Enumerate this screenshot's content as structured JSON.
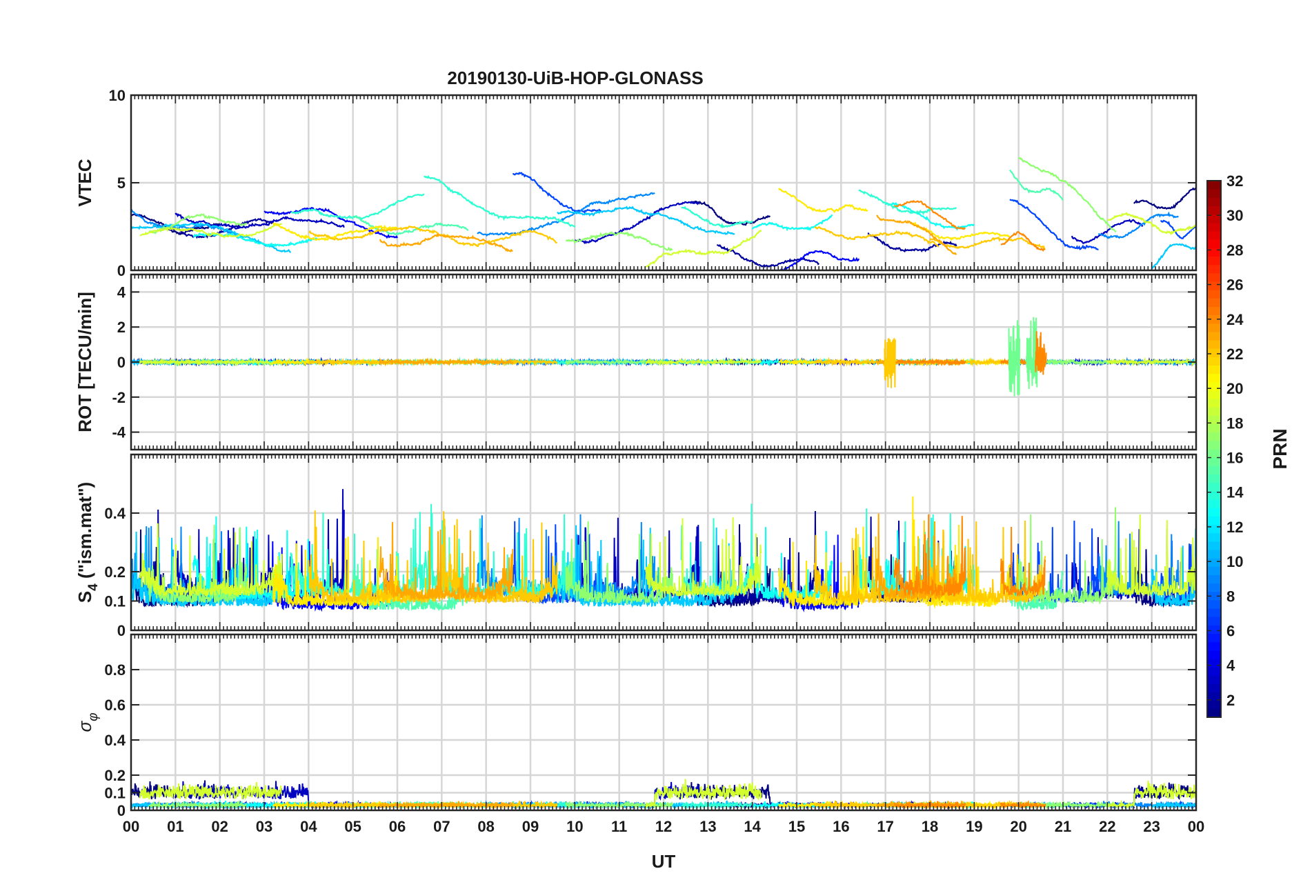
{
  "chart_data": {
    "type": "line",
    "title": "20190130-UiB-HOP-GLONASS",
    "xlabel": "UT",
    "x_range_hours": [
      0,
      24
    ],
    "x_tick_labels": [
      "00",
      "01",
      "02",
      "03",
      "04",
      "05",
      "06",
      "07",
      "08",
      "09",
      "10",
      "11",
      "12",
      "13",
      "14",
      "15",
      "16",
      "17",
      "18",
      "19",
      "20",
      "21",
      "22",
      "23",
      "00"
    ],
    "grid": true,
    "colorbar": {
      "label": "PRN",
      "range": [
        1,
        32
      ],
      "tick_labels": [
        "2",
        "4",
        "6",
        "8",
        "10",
        "12",
        "14",
        "16",
        "18",
        "20",
        "22",
        "24",
        "26",
        "28",
        "30",
        "32"
      ],
      "colormap": "jet",
      "placement": "right"
    },
    "panels": [
      {
        "id": "vtec",
        "ylabel": "VTEC",
        "ylim": [
          0,
          10
        ],
        "y_ticks": [
          0,
          5,
          10
        ],
        "y_tick_labels": [
          "0",
          "5",
          "10"
        ],
        "series": [
          {
            "prn": 1,
            "segments": [
              [
                0.0,
                2.0,
                2.8,
                2.3
              ],
              [
                12.6,
                14.4,
                3.6,
                2.8
              ],
              [
                22.6,
                24.0,
                3.5,
                4.2
              ]
            ]
          },
          {
            "prn": 2,
            "segments": [
              [
                0.5,
                3.2,
                2.2,
                2.5
              ],
              [
                13.2,
                15.5,
                1.2,
                0.2
              ],
              [
                16.6,
                18.6,
                1.8,
                1.0
              ]
            ]
          },
          {
            "prn": 3,
            "segments": [
              [
                1.0,
                4.8,
                3.2,
                2.4
              ],
              [
                10.0,
                12.8,
                1.6,
                3.8
              ],
              [
                21.2,
                22.8,
                1.9,
                2.6
              ]
            ]
          },
          {
            "prn": 5,
            "segments": [
              [
                3.0,
                6.0,
                3.7,
                2.2
              ],
              [
                14.6,
                16.4,
                0.3,
                1.0
              ]
            ]
          },
          {
            "prn": 7,
            "segments": [
              [
                8.6,
                10.6,
                5.3,
                3.0
              ],
              [
                19.8,
                21.8,
                3.8,
                0.8
              ],
              [
                23.2,
                24.0,
                2.6,
                2.2
              ]
            ]
          },
          {
            "prn": 9,
            "segments": [
              [
                0.0,
                2.4,
                3.3,
                1.8
              ],
              [
                7.8,
                11.8,
                2.0,
                4.4
              ],
              [
                21.8,
                23.6,
                2.0,
                3.0
              ]
            ]
          },
          {
            "prn": 11,
            "segments": [
              [
                0.0,
                3.6,
                2.8,
                1.5
              ],
              [
                9.6,
                13.6,
                3.6,
                2.4
              ],
              [
                23.0,
                24.0,
                0.5,
                1.8
              ]
            ]
          },
          {
            "prn": 13,
            "segments": [
              [
                1.4,
                4.2,
                1.8,
                1.6
              ],
              [
                14.0,
                15.8,
                2.2,
                3.0
              ],
              [
                17.0,
                19.0,
                3.6,
                2.4
              ]
            ]
          },
          {
            "prn": 14,
            "segments": [
              [
                3.6,
                6.6,
                3.0,
                4.0
              ],
              [
                6.6,
                10.0,
                5.0,
                2.2
              ],
              [
                12.4,
                14.0,
                3.2,
                2.5
              ],
              [
                16.4,
                18.6,
                4.2,
                3.2
              ]
            ]
          },
          {
            "prn": 15,
            "segments": [
              [
                5.0,
                7.6,
                2.8,
                2.2
              ],
              [
                19.8,
                21.0,
                5.5,
                4.0
              ]
            ]
          },
          {
            "prn": 17,
            "segments": [
              [
                0.4,
                2.6,
                2.6,
                3.0
              ],
              [
                9.8,
                12.2,
                2.0,
                1.6
              ],
              [
                20.0,
                22.2,
                6.8,
                2.6
              ]
            ]
          },
          {
            "prn": 19,
            "segments": [
              [
                0.2,
                3.4,
                1.9,
                2.6
              ],
              [
                11.6,
                14.2,
                0.1,
                2.2
              ],
              [
                22.0,
                24.0,
                2.8,
                2.3
              ]
            ]
          },
          {
            "prn": 21,
            "segments": [
              [
                3.2,
                6.0,
                2.4,
                2.1
              ],
              [
                14.6,
                16.6,
                4.4,
                3.2
              ],
              [
                17.6,
                19.8,
                2.4,
                1.8
              ]
            ]
          },
          {
            "prn": 22,
            "segments": [
              [
                4.0,
                7.2,
                2.2,
                2.0
              ],
              [
                7.2,
                9.6,
                1.8,
                1.8
              ],
              [
                15.4,
                18.2,
                2.5,
                1.5
              ],
              [
                18.0,
                20.6,
                1.8,
                1.4
              ]
            ]
          },
          {
            "prn": 23,
            "segments": [
              [
                5.6,
                8.6,
                2.0,
                1.4
              ],
              [
                16.8,
                18.6,
                3.4,
                1.2
              ]
            ]
          },
          {
            "prn": 24,
            "segments": [
              [
                17.2,
                18.8,
                4.0,
                2.6
              ],
              [
                19.6,
                20.6,
                1.8,
                1.6
              ]
            ]
          }
        ]
      },
      {
        "id": "rot",
        "ylabel": "ROT [TECU/min]",
        "ylim": [
          -5,
          5
        ],
        "y_ticks": [
          -4,
          -2,
          0,
          2,
          4
        ],
        "y_tick_labels": [
          "-4",
          "-2",
          "0",
          "2",
          "4"
        ],
        "series_note": "same PRN arcs as VTEC; values near 0",
        "spikes": [
          [
            17.1,
            -1.5,
            1.4
          ],
          [
            19.9,
            -2.0,
            2.5
          ],
          [
            20.3,
            -2.0,
            2.6
          ],
          [
            20.5,
            -0.8,
            1.8
          ]
        ]
      },
      {
        "id": "s4",
        "ylabel": "S4 (\"ism.mat\")",
        "ylabel_parts": {
          "main": "S",
          "sub": "4",
          "rest": " (\"ism.mat\")"
        },
        "ylim": [
          0,
          0.6
        ],
        "y_ticks": [
          0,
          0.1,
          0.2,
          0.4
        ],
        "y_tick_labels": [
          "0",
          "0.1",
          "0.2",
          "0.4"
        ],
        "series_note": "noisy scintillation index, baseline ~0.07-0.12, peaks up to ~0.5"
      },
      {
        "id": "sigma_phi",
        "ylabel": "σφ",
        "ylabel_parts": {
          "main": "σ",
          "sub": "φ"
        },
        "ylim": [
          0,
          1
        ],
        "y_ticks": [
          0,
          0.1,
          0.2,
          0.4,
          0.6,
          0.8
        ],
        "y_tick_labels": [
          "0",
          "0.1",
          "0.2",
          "0.4",
          "0.6",
          "0.8"
        ],
        "series_note": "phase scintillation, mostly <0.1, enhancements to ~0.2"
      }
    ]
  }
}
